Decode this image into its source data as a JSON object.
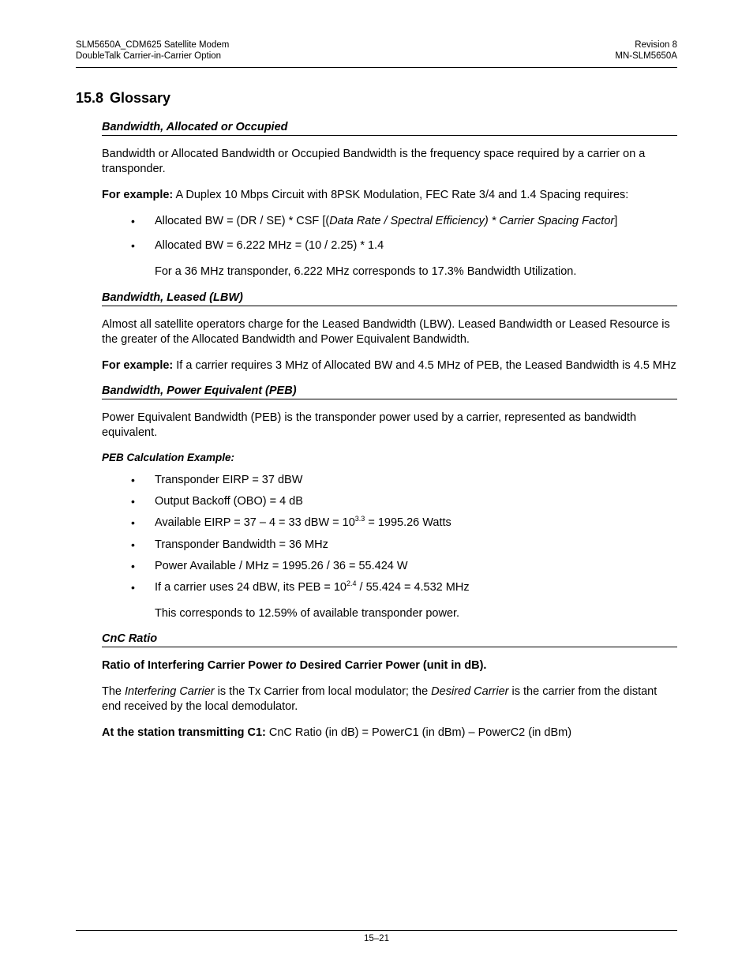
{
  "header": {
    "left_line1": "SLM5650A_CDM625 Satellite Modem",
    "left_line2": "DoubleTalk Carrier-in-Carrier Option",
    "right_line1": "Revision 8",
    "right_line2": "MN-SLM5650A"
  },
  "section": {
    "number": "15.8",
    "title": "Glossary"
  },
  "term1": {
    "heading": "Bandwidth, Allocated or Occupied",
    "p1": "Bandwidth or Allocated Bandwidth or Occupied Bandwidth is the frequency space required by a carrier on a transponder.",
    "p2_bold": "For example:",
    "p2_rest": " A Duplex 10 Mbps Circuit with 8PSK Modulation, FEC Rate 3/4 and 1.4 Spacing requires:",
    "b1_a": "Allocated BW = (DR / SE) * CSF [(",
    "b1_ital": "Data Rate / Spectral Efficiency) * Carrier Spacing Factor",
    "b1_b": "]",
    "b2": "Allocated BW = 6.222 MHz = (10 / 2.25) * 1.4",
    "sub": "For a 36 MHz transponder, 6.222 MHz corresponds to 17.3% Bandwidth Utilization."
  },
  "term2": {
    "heading": "Bandwidth, Leased (LBW)",
    "p1": "Almost all satellite operators charge for the Leased Bandwidth (LBW). Leased Bandwidth or Leased Resource is the greater of the Allocated Bandwidth and Power Equivalent Bandwidth.",
    "p2_bold": "For example:",
    "p2_rest": " If a carrier requires 3 MHz of Allocated BW and 4.5 MHz of PEB, the Leased Bandwidth is 4.5 MHz"
  },
  "term3": {
    "heading": "Bandwidth, Power Equivalent (PEB)",
    "p1": "Power Equivalent Bandwidth (PEB) is the transponder power used by a carrier, represented as bandwidth equivalent.",
    "subhead": "PEB Calculation Example:",
    "b1": "Transponder EIRP = 37 dBW",
    "b2": "Output Backoff (OBO) = 4 dB",
    "b3_a": "Available EIRP = 37 – 4 = 33 dBW = 10",
    "b3_sup": "3.3",
    "b3_b": " = 1995.26 Watts",
    "b4": "Transponder Bandwidth = 36 MHz",
    "b5": "Power Available / MHz = 1995.26 / 36 = 55.424 W",
    "b6_a": "If a carrier uses 24 dBW, its PEB = 10",
    "b6_sup": "2.4",
    "b6_b": " / 55.424 = 4.532 MHz",
    "sub": "This corresponds to 12.59% of available transponder power."
  },
  "term4": {
    "heading": "CnC Ratio",
    "p1_a": "Ratio of Interfering Carrier Power ",
    "p1_ital": "to",
    "p1_b": " Desired Carrier Power (unit in dB).",
    "p2_a": "The ",
    "p2_i1": "Interfering Carrier",
    "p2_b": " is the Tx Carrier from local modulator; the ",
    "p2_i2": "Desired Carrier",
    "p2_c": " is the carrier from the distant end received by the local demodulator.",
    "p3_bold": "At the station transmitting C1:",
    "p3_rest": "  CnC Ratio (in dB) = PowerC1 (in dBm) – PowerC2 (in dBm)"
  },
  "footer": {
    "pagenum": "15–21"
  }
}
